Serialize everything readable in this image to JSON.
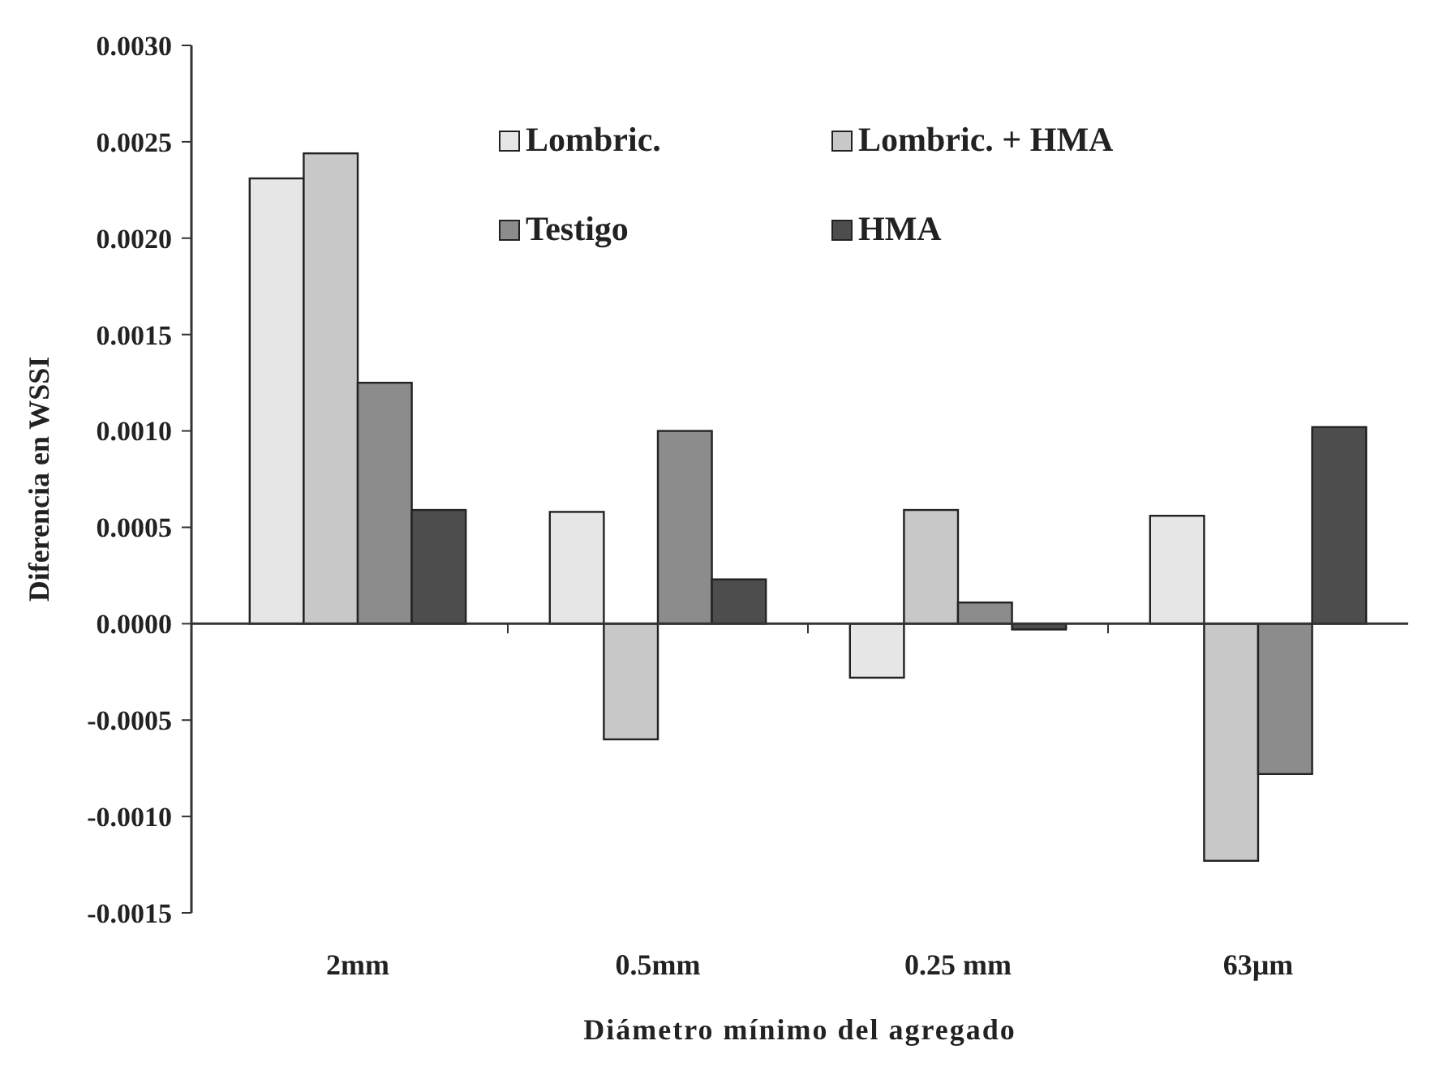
{
  "chart_data": {
    "type": "bar",
    "xlabel": "Diámetro mínimo del agregado",
    "ylabel": "Diferencia en WSSI",
    "categories": [
      "2mm",
      "0.5mm",
      "0.25 mm",
      "63µm"
    ],
    "series": [
      {
        "name": "Lombric.",
        "color": "#e6e6e6",
        "values": [
          0.00231,
          0.00058,
          -0.00028,
          0.00056
        ]
      },
      {
        "name": "Lombric. + HMA",
        "color": "#c8c8c8",
        "values": [
          0.00244,
          -0.0006,
          0.00059,
          -0.00123
        ]
      },
      {
        "name": "Testigo",
        "color": "#8c8c8c",
        "values": [
          0.00125,
          0.001,
          0.00011,
          -0.00078
        ]
      },
      {
        "name": "HMA",
        "color": "#4d4d4d",
        "values": [
          0.00059,
          0.00023,
          -3e-05,
          0.00102
        ]
      }
    ],
    "ylim": [
      -0.0015,
      0.003
    ],
    "yticks": [
      {
        "value": -0.0015,
        "label": "-0.0015"
      },
      {
        "value": -0.001,
        "label": "-0.0010"
      },
      {
        "value": -0.0005,
        "label": "-0.0005"
      },
      {
        "value": 0,
        "label": "0.0000"
      },
      {
        "value": 0.0005,
        "label": "0.0005"
      },
      {
        "value": 0.001,
        "label": "0.0010"
      },
      {
        "value": 0.0015,
        "label": "0.0015"
      },
      {
        "value": 0.002,
        "label": "0.0020"
      },
      {
        "value": 0.0025,
        "label": "0.0025"
      },
      {
        "value": 0.003,
        "label": "0.0030"
      }
    ],
    "legend": "top"
  }
}
